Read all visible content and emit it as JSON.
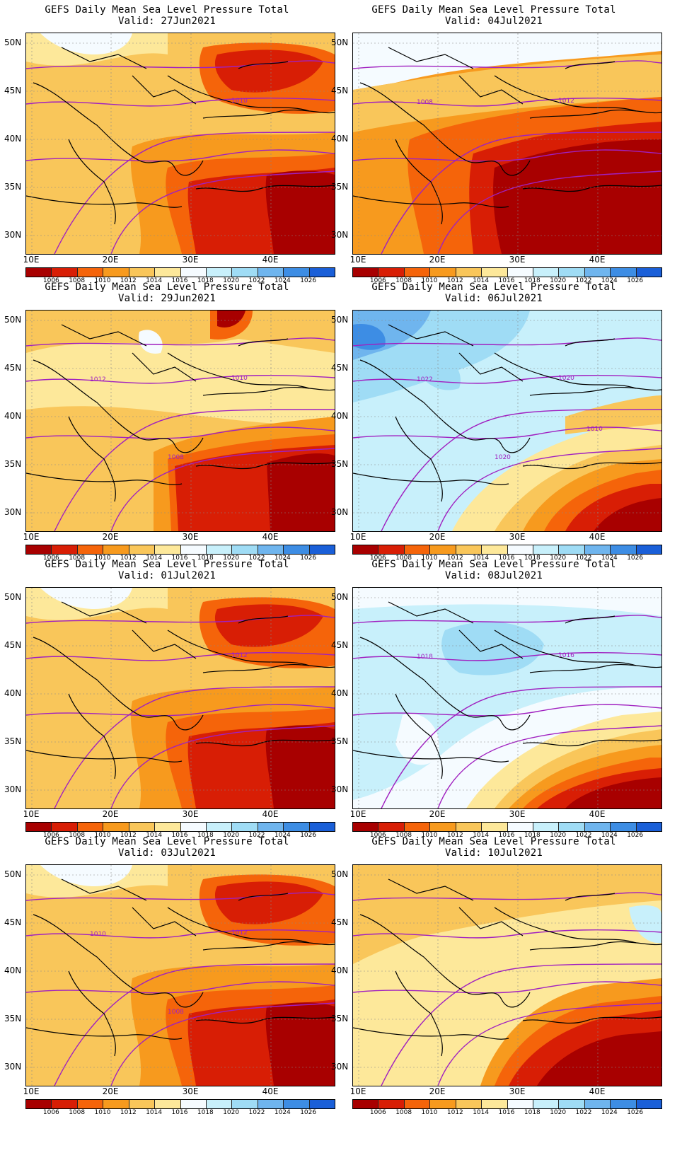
{
  "colorbar": {
    "labels": [
      "1006",
      "1008",
      "1010",
      "1012",
      "1014",
      "1016",
      "1018",
      "1020",
      "1022",
      "1024",
      "1026"
    ],
    "colors": [
      "#a80000",
      "#d81e05",
      "#f5640a",
      "#f79a1e",
      "#f9c65a",
      "#fde89a",
      "#f5fbff",
      "#c8f0fb",
      "#9fdcf5",
      "#6fb5ee",
      "#3d8de4",
      "#1a5fd8"
    ]
  },
  "axes": {
    "lat_labels": [
      "50N",
      "45N",
      "40N",
      "35N",
      "30N"
    ],
    "lon_labels": [
      "10E",
      "20E",
      "30E",
      "40E"
    ]
  },
  "panels": [
    {
      "title": "GEFS Daily Mean Sea Level Pressure Total",
      "valid": "Valid: 27Jun2021",
      "contour_labels": [
        "1010"
      ],
      "regime": "low-east"
    },
    {
      "title": "GEFS Daily Mean Sea Level Pressure Total",
      "valid": "Valid: 04Jul2021",
      "contour_labels": [
        "1012",
        "1008"
      ],
      "regime": "low-east-strong"
    },
    {
      "title": "GEFS Daily Mean Sea Level Pressure Total",
      "valid": "Valid: 29Jun2021",
      "contour_labels": [
        "1010",
        "1012",
        "1008"
      ],
      "regime": "mixed"
    },
    {
      "title": "GEFS Daily Mean Sea Level Pressure Total",
      "valid": "Valid: 06Jul2021",
      "contour_labels": [
        "1020",
        "1022",
        "1020",
        "1010"
      ],
      "regime": "high-west"
    },
    {
      "title": "GEFS Daily Mean Sea Level Pressure Total",
      "valid": "Valid: 01Jul2021",
      "contour_labels": [
        "1012"
      ],
      "regime": "low-east"
    },
    {
      "title": "GEFS Daily Mean Sea Level Pressure Total",
      "valid": "Valid: 08Jul2021",
      "contour_labels": [
        "1016",
        "1018"
      ],
      "regime": "high-center"
    },
    {
      "title": "GEFS Daily Mean Sea Level Pressure Total",
      "valid": "Valid: 03Jul2021",
      "contour_labels": [
        "1012",
        "1010",
        "1008"
      ],
      "regime": "low-east"
    },
    {
      "title": "GEFS Daily Mean Sea Level Pressure Total",
      "valid": "Valid: 10Jul2021",
      "contour_labels": [],
      "regime": "low-east-mild"
    }
  ]
}
